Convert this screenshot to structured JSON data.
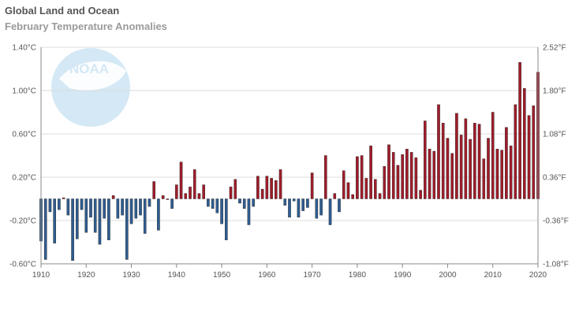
{
  "chart_data": {
    "type": "bar",
    "title": "Global Land and Ocean",
    "subtitle": "February Temperature Anomalies",
    "xlim": [
      1910,
      2020
    ],
    "ylim": [
      -0.6,
      1.4
    ],
    "y_ticks": [
      -0.6,
      -0.2,
      0.2,
      0.6,
      1.0,
      1.4
    ],
    "y_tick_labels": [
      "-0.60°C",
      "-0.20°C",
      "0.20°C",
      "0.60°C",
      "1.00°C",
      "1.40°C"
    ],
    "y2_tick_labels": [
      "-1.08°F",
      "-0.36°F",
      "0.36°F",
      "1.08°F",
      "1.80°F",
      "2.52°F"
    ],
    "x_ticks": [
      1910,
      1920,
      1930,
      1940,
      1950,
      1960,
      1970,
      1980,
      1990,
      2000,
      2010,
      2020
    ],
    "x_tick_labels": [
      "1910",
      "1920",
      "1930",
      "1940",
      "1950",
      "1960",
      "1970",
      "1980",
      "1990",
      "2000",
      "2010",
      "2020"
    ],
    "grid": true,
    "logo_text": "NOAA",
    "colors": {
      "positive": "#a01c2a",
      "negative": "#2f5d92",
      "grid": "#dddddd",
      "axis": "#888888",
      "logo": "#d4e8f5"
    },
    "x": [
      1910,
      1911,
      1912,
      1913,
      1914,
      1915,
      1916,
      1917,
      1918,
      1919,
      1920,
      1921,
      1922,
      1923,
      1924,
      1925,
      1926,
      1927,
      1928,
      1929,
      1930,
      1931,
      1932,
      1933,
      1934,
      1935,
      1936,
      1937,
      1938,
      1939,
      1940,
      1941,
      1942,
      1943,
      1944,
      1945,
      1946,
      1947,
      1948,
      1949,
      1950,
      1951,
      1952,
      1953,
      1954,
      1955,
      1956,
      1957,
      1958,
      1959,
      1960,
      1961,
      1962,
      1963,
      1964,
      1965,
      1966,
      1967,
      1968,
      1969,
      1970,
      1971,
      1972,
      1973,
      1974,
      1975,
      1976,
      1977,
      1978,
      1979,
      1980,
      1981,
      1982,
      1983,
      1984,
      1985,
      1986,
      1987,
      1988,
      1989,
      1990,
      1991,
      1992,
      1993,
      1994,
      1995,
      1996,
      1997,
      1998,
      1999,
      2000,
      2001,
      2002,
      2003,
      2004,
      2005,
      2006,
      2007,
      2008,
      2009,
      2010,
      2011,
      2012,
      2013,
      2014,
      2015,
      2016,
      2017,
      2018,
      2019,
      2020
    ],
    "values": [
      -0.39,
      -0.56,
      -0.12,
      -0.41,
      -0.1,
      0.01,
      -0.15,
      -0.57,
      -0.37,
      -0.1,
      -0.31,
      -0.17,
      -0.31,
      -0.42,
      -0.18,
      -0.38,
      0.03,
      -0.18,
      -0.15,
      -0.56,
      -0.23,
      -0.18,
      -0.15,
      -0.32,
      -0.07,
      0.16,
      -0.29,
      0.03,
      0.0,
      -0.09,
      0.13,
      0.34,
      0.05,
      0.11,
      0.27,
      0.05,
      0.13,
      -0.07,
      -0.09,
      -0.13,
      -0.23,
      -0.38,
      0.11,
      0.18,
      -0.04,
      -0.09,
      -0.24,
      -0.07,
      0.21,
      0.09,
      0.21,
      0.19,
      0.17,
      0.27,
      -0.06,
      -0.17,
      -0.02,
      -0.17,
      -0.11,
      -0.08,
      0.24,
      -0.18,
      -0.15,
      0.4,
      -0.24,
      0.05,
      -0.12,
      0.26,
      0.15,
      0.04,
      0.39,
      0.4,
      0.19,
      0.49,
      0.18,
      0.05,
      0.3,
      0.5,
      0.43,
      0.31,
      0.41,
      0.46,
      0.43,
      0.38,
      0.08,
      0.72,
      0.46,
      0.44,
      0.87,
      0.7,
      0.56,
      0.42,
      0.79,
      0.59,
      0.74,
      0.55,
      0.7,
      0.69,
      0.37,
      0.56,
      0.8,
      0.46,
      0.45,
      0.66,
      0.49,
      0.87,
      1.26,
      1.02,
      0.77,
      0.86,
      1.17
    ]
  }
}
